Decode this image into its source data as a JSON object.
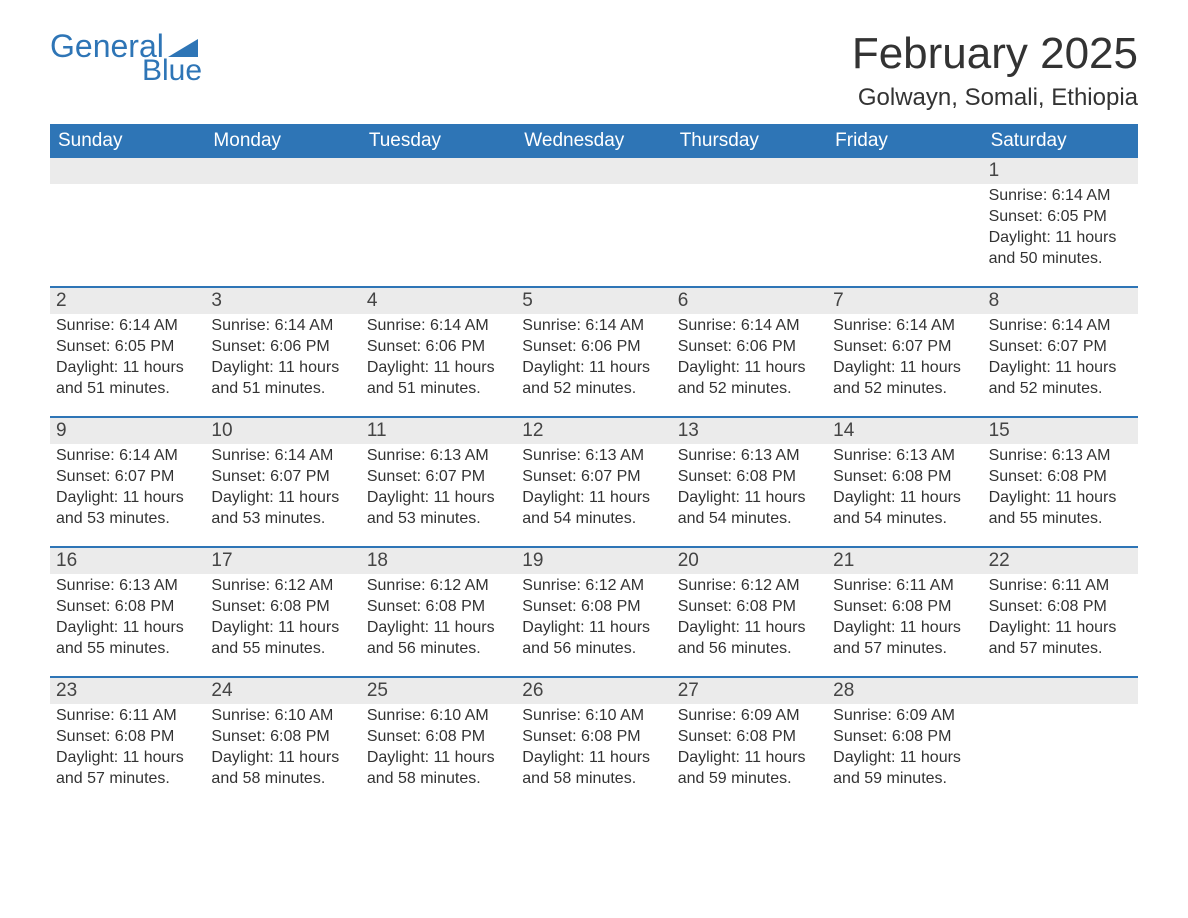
{
  "logo": {
    "line1": "General",
    "line2": "Blue",
    "brand_color": "#2e75b6"
  },
  "title": "February 2025",
  "location": "Golwayn, Somali, Ethiopia",
  "colors": {
    "header_bg": "#2e75b6",
    "header_text": "#ffffff",
    "daynum_bg": "#ebebeb",
    "week_divider": "#2e75b6",
    "page_bg": "#ffffff",
    "text": "#333333"
  },
  "weekdays": [
    "Sunday",
    "Monday",
    "Tuesday",
    "Wednesday",
    "Thursday",
    "Friday",
    "Saturday"
  ],
  "weeks": [
    [
      {
        "blank": true
      },
      {
        "blank": true
      },
      {
        "blank": true
      },
      {
        "blank": true
      },
      {
        "blank": true
      },
      {
        "blank": true
      },
      {
        "day": "1",
        "sunrise": "Sunrise: 6:14 AM",
        "sunset": "Sunset: 6:05 PM",
        "dl1": "Daylight: 11 hours",
        "dl2": "and 50 minutes."
      }
    ],
    [
      {
        "day": "2",
        "sunrise": "Sunrise: 6:14 AM",
        "sunset": "Sunset: 6:05 PM",
        "dl1": "Daylight: 11 hours",
        "dl2": "and 51 minutes."
      },
      {
        "day": "3",
        "sunrise": "Sunrise: 6:14 AM",
        "sunset": "Sunset: 6:06 PM",
        "dl1": "Daylight: 11 hours",
        "dl2": "and 51 minutes."
      },
      {
        "day": "4",
        "sunrise": "Sunrise: 6:14 AM",
        "sunset": "Sunset: 6:06 PM",
        "dl1": "Daylight: 11 hours",
        "dl2": "and 51 minutes."
      },
      {
        "day": "5",
        "sunrise": "Sunrise: 6:14 AM",
        "sunset": "Sunset: 6:06 PM",
        "dl1": "Daylight: 11 hours",
        "dl2": "and 52 minutes."
      },
      {
        "day": "6",
        "sunrise": "Sunrise: 6:14 AM",
        "sunset": "Sunset: 6:06 PM",
        "dl1": "Daylight: 11 hours",
        "dl2": "and 52 minutes."
      },
      {
        "day": "7",
        "sunrise": "Sunrise: 6:14 AM",
        "sunset": "Sunset: 6:07 PM",
        "dl1": "Daylight: 11 hours",
        "dl2": "and 52 minutes."
      },
      {
        "day": "8",
        "sunrise": "Sunrise: 6:14 AM",
        "sunset": "Sunset: 6:07 PM",
        "dl1": "Daylight: 11 hours",
        "dl2": "and 52 minutes."
      }
    ],
    [
      {
        "day": "9",
        "sunrise": "Sunrise: 6:14 AM",
        "sunset": "Sunset: 6:07 PM",
        "dl1": "Daylight: 11 hours",
        "dl2": "and 53 minutes."
      },
      {
        "day": "10",
        "sunrise": "Sunrise: 6:14 AM",
        "sunset": "Sunset: 6:07 PM",
        "dl1": "Daylight: 11 hours",
        "dl2": "and 53 minutes."
      },
      {
        "day": "11",
        "sunrise": "Sunrise: 6:13 AM",
        "sunset": "Sunset: 6:07 PM",
        "dl1": "Daylight: 11 hours",
        "dl2": "and 53 minutes."
      },
      {
        "day": "12",
        "sunrise": "Sunrise: 6:13 AM",
        "sunset": "Sunset: 6:07 PM",
        "dl1": "Daylight: 11 hours",
        "dl2": "and 54 minutes."
      },
      {
        "day": "13",
        "sunrise": "Sunrise: 6:13 AM",
        "sunset": "Sunset: 6:08 PM",
        "dl1": "Daylight: 11 hours",
        "dl2": "and 54 minutes."
      },
      {
        "day": "14",
        "sunrise": "Sunrise: 6:13 AM",
        "sunset": "Sunset: 6:08 PM",
        "dl1": "Daylight: 11 hours",
        "dl2": "and 54 minutes."
      },
      {
        "day": "15",
        "sunrise": "Sunrise: 6:13 AM",
        "sunset": "Sunset: 6:08 PM",
        "dl1": "Daylight: 11 hours",
        "dl2": "and 55 minutes."
      }
    ],
    [
      {
        "day": "16",
        "sunrise": "Sunrise: 6:13 AM",
        "sunset": "Sunset: 6:08 PM",
        "dl1": "Daylight: 11 hours",
        "dl2": "and 55 minutes."
      },
      {
        "day": "17",
        "sunrise": "Sunrise: 6:12 AM",
        "sunset": "Sunset: 6:08 PM",
        "dl1": "Daylight: 11 hours",
        "dl2": "and 55 minutes."
      },
      {
        "day": "18",
        "sunrise": "Sunrise: 6:12 AM",
        "sunset": "Sunset: 6:08 PM",
        "dl1": "Daylight: 11 hours",
        "dl2": "and 56 minutes."
      },
      {
        "day": "19",
        "sunrise": "Sunrise: 6:12 AM",
        "sunset": "Sunset: 6:08 PM",
        "dl1": "Daylight: 11 hours",
        "dl2": "and 56 minutes."
      },
      {
        "day": "20",
        "sunrise": "Sunrise: 6:12 AM",
        "sunset": "Sunset: 6:08 PM",
        "dl1": "Daylight: 11 hours",
        "dl2": "and 56 minutes."
      },
      {
        "day": "21",
        "sunrise": "Sunrise: 6:11 AM",
        "sunset": "Sunset: 6:08 PM",
        "dl1": "Daylight: 11 hours",
        "dl2": "and 57 minutes."
      },
      {
        "day": "22",
        "sunrise": "Sunrise: 6:11 AM",
        "sunset": "Sunset: 6:08 PM",
        "dl1": "Daylight: 11 hours",
        "dl2": "and 57 minutes."
      }
    ],
    [
      {
        "day": "23",
        "sunrise": "Sunrise: 6:11 AM",
        "sunset": "Sunset: 6:08 PM",
        "dl1": "Daylight: 11 hours",
        "dl2": "and 57 minutes."
      },
      {
        "day": "24",
        "sunrise": "Sunrise: 6:10 AM",
        "sunset": "Sunset: 6:08 PM",
        "dl1": "Daylight: 11 hours",
        "dl2": "and 58 minutes."
      },
      {
        "day": "25",
        "sunrise": "Sunrise: 6:10 AM",
        "sunset": "Sunset: 6:08 PM",
        "dl1": "Daylight: 11 hours",
        "dl2": "and 58 minutes."
      },
      {
        "day": "26",
        "sunrise": "Sunrise: 6:10 AM",
        "sunset": "Sunset: 6:08 PM",
        "dl1": "Daylight: 11 hours",
        "dl2": "and 58 minutes."
      },
      {
        "day": "27",
        "sunrise": "Sunrise: 6:09 AM",
        "sunset": "Sunset: 6:08 PM",
        "dl1": "Daylight: 11 hours",
        "dl2": "and 59 minutes."
      },
      {
        "day": "28",
        "sunrise": "Sunrise: 6:09 AM",
        "sunset": "Sunset: 6:08 PM",
        "dl1": "Daylight: 11 hours",
        "dl2": "and 59 minutes."
      },
      {
        "blank": true
      }
    ]
  ]
}
